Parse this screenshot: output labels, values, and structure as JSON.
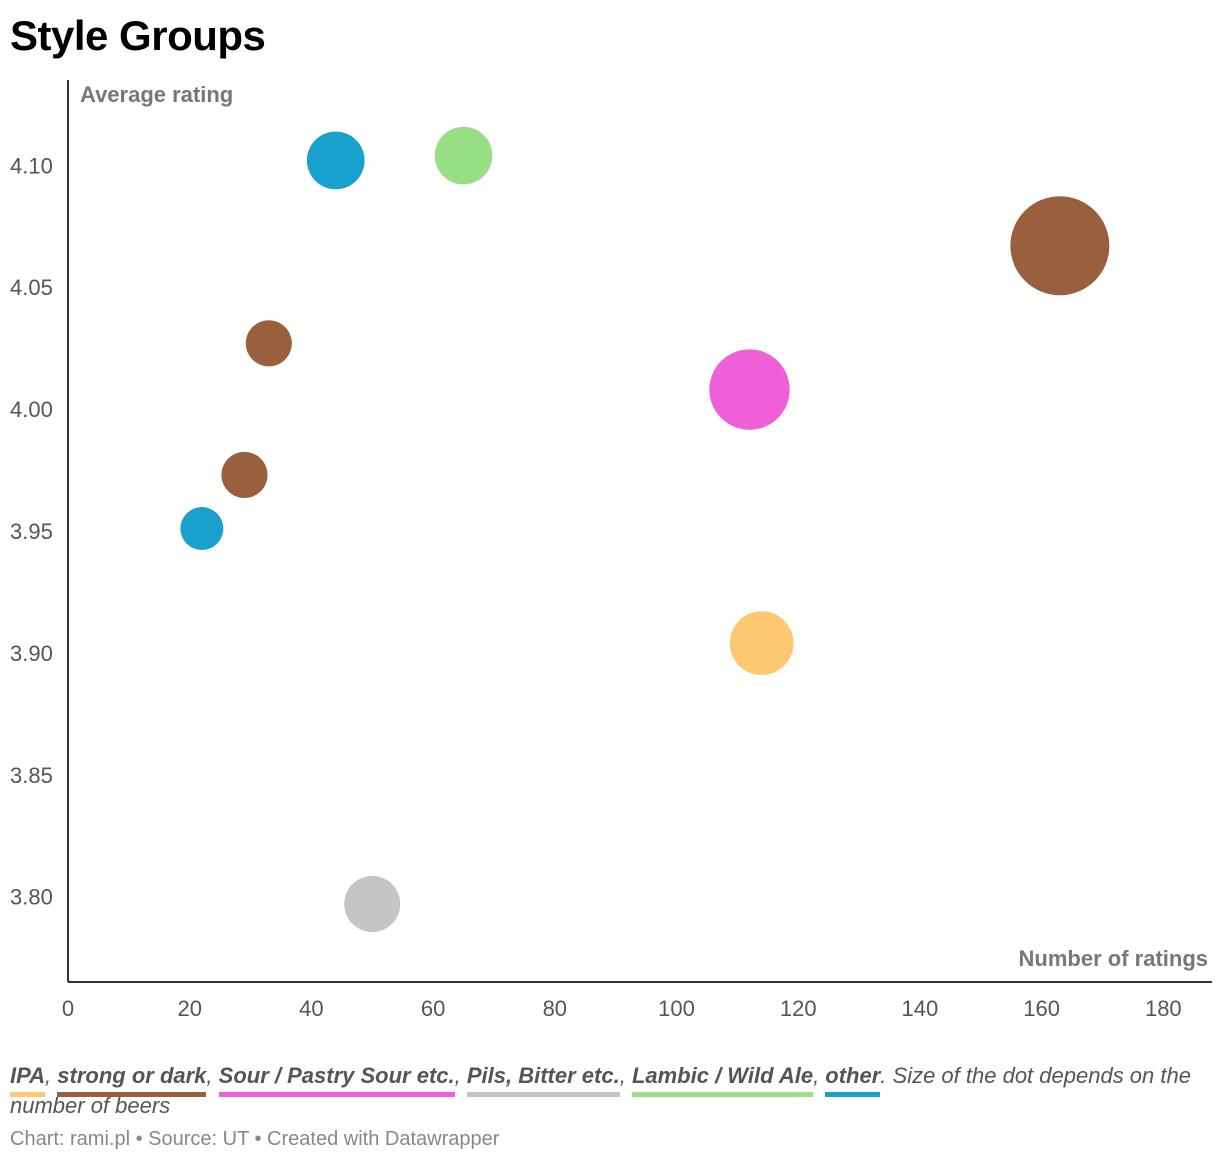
{
  "title": "Style Groups",
  "chart_data": {
    "type": "scatter",
    "title": "Style Groups",
    "xlabel": "Number of ratings",
    "ylabel": "Average rating",
    "xlim": [
      0,
      188
    ],
    "ylim": [
      3.765,
      4.135
    ],
    "x_ticks": [
      "0",
      "20",
      "40",
      "60",
      "80",
      "100",
      "120",
      "140",
      "160",
      "180"
    ],
    "y_ticks": [
      "3.80",
      "3.85",
      "3.90",
      "3.95",
      "4.00",
      "4.05",
      "4.10"
    ],
    "bubble_size_meaning": "number of beers",
    "series": [
      {
        "name": "IPA",
        "color": "#fdc870",
        "points": [
          {
            "x": 114,
            "y": 3.904,
            "size": 2.2
          }
        ]
      },
      {
        "name": "strong or dark",
        "color": "#9a603d",
        "points": [
          {
            "x": 163,
            "y": 4.067,
            "size": 5.3
          },
          {
            "x": 33,
            "y": 4.027,
            "size": 1.15
          },
          {
            "x": 29,
            "y": 3.973,
            "size": 1.15
          }
        ]
      },
      {
        "name": "Sour / Pastry Sour etc.",
        "color": "#ef5fd8",
        "points": [
          {
            "x": 112,
            "y": 4.008,
            "size": 3.5
          }
        ]
      },
      {
        "name": "Pils, Bitter etc.",
        "color": "#c4c4c4",
        "points": [
          {
            "x": 50,
            "y": 3.797,
            "size": 1.7
          }
        ]
      },
      {
        "name": "Lambic / Wild Ale",
        "color": "#99df86",
        "points": [
          {
            "x": 65,
            "y": 4.104,
            "size": 1.8
          }
        ]
      },
      {
        "name": "other",
        "color": "#18a1cd",
        "points": [
          {
            "x": 44,
            "y": 4.102,
            "size": 1.8
          },
          {
            "x": 22,
            "y": 3.951,
            "size": 1.0
          }
        ]
      }
    ]
  },
  "legend": {
    "items": [
      {
        "label": "IPA",
        "color": "#fdc870"
      },
      {
        "label": "strong or dark",
        "color": "#9a603d"
      },
      {
        "label": "Sour / Pastry Sour etc.",
        "color": "#ef5fd8"
      },
      {
        "label": "Pils, Bitter etc.",
        "color": "#c4c4c4"
      },
      {
        "label": "Lambic / Wild Ale",
        "color": "#99df86"
      },
      {
        "label": "other",
        "color": "#18a1cd"
      }
    ],
    "note": ". Size of the dot depends on the number of beers"
  },
  "footer": "Chart: rami.pl • Source: UT • Created with Datawrapper"
}
